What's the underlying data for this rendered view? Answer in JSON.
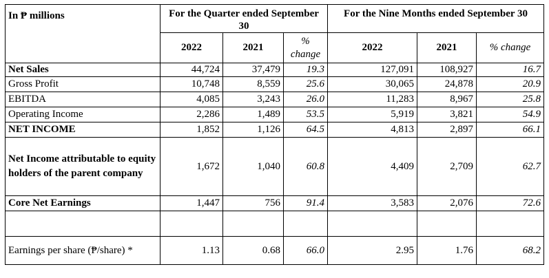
{
  "table": {
    "unit_label": "In ₱ millions",
    "group_quarter": "For the Quarter ended September 30",
    "group_nine": "For the Nine Months ended September 30",
    "col_q_2022": "2022",
    "col_q_2021": "2021",
    "col_q_pct": "% change",
    "col_n_2022": "2022",
    "col_n_2021": "2021",
    "col_n_pct": "% change",
    "rows": [
      {
        "label": "Net Sales",
        "q2022": "44,724",
        "q2021": "37,479",
        "qpct": "19.3",
        "n2022": "127,091",
        "n2021": "108,927",
        "npct": "16.7"
      },
      {
        "label": "Gross Profit",
        "q2022": "10,748",
        "q2021": "8,559",
        "qpct": "25.6",
        "n2022": "30,065",
        "n2021": "24,878",
        "npct": "20.9"
      },
      {
        "label": "EBITDA",
        "q2022": "4,085",
        "q2021": "3,243",
        "qpct": "26.0",
        "n2022": "11,283",
        "n2021": "8,967",
        "npct": "25.8"
      },
      {
        "label": "Operating Income",
        "q2022": "2,286",
        "q2021": "1,489",
        "qpct": "53.5",
        "n2022": "5,919",
        "n2021": "3,821",
        "npct": "54.9"
      },
      {
        "label": "NET INCOME",
        "q2022": "1,852",
        "q2021": "1,126",
        "qpct": "64.5",
        "n2022": "4,813",
        "n2021": "2,897",
        "npct": "66.1"
      },
      {
        "label": "Net Income attributable to equity holders of the parent company",
        "q2022": "1,672",
        "q2021": "1,040",
        "qpct": "60.8",
        "n2022": "4,409",
        "n2021": "2,709",
        "npct": "62.7"
      },
      {
        "label": "Core Net Earnings",
        "q2022": "1,447",
        "q2021": "756",
        "qpct": "91.4",
        "n2022": "3,583",
        "n2021": "2,076",
        "npct": "72.6"
      },
      {
        "label": "",
        "q2022": "",
        "q2021": "",
        "qpct": "",
        "n2022": "",
        "n2021": "",
        "npct": ""
      },
      {
        "label": "Earnings per share (₱/share) *",
        "q2022": "1.13",
        "q2021": "0.68",
        "qpct": "66.0",
        "n2022": "2.95",
        "n2021": "1.76",
        "npct": "68.2"
      }
    ]
  }
}
